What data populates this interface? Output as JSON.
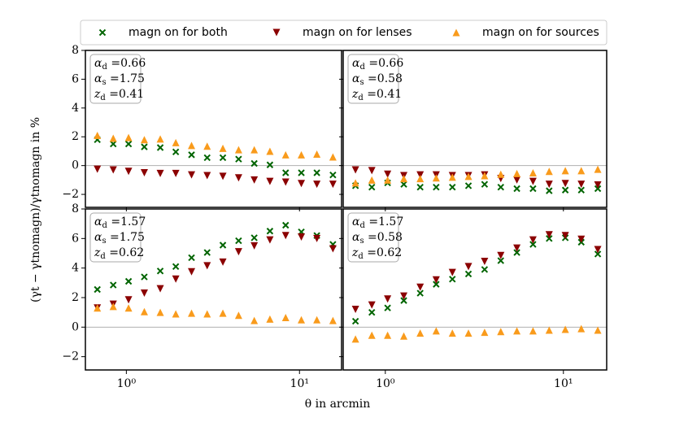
{
  "chart_data": {
    "type": "scatter",
    "xlabel": "θ in arcmin",
    "ylabel": "(γt − γtnomagn)/γtnomagn in %",
    "log_x": true,
    "hline": 0,
    "legend": "top",
    "x": [
      0.68,
      0.84,
      1.03,
      1.27,
      1.57,
      1.93,
      2.38,
      2.93,
      3.61,
      4.45,
      5.48,
      6.75,
      8.32,
      10.25,
      12.6,
      15.6
    ],
    "xlim": [
      0.58,
      17.5
    ],
    "xticks": [
      {
        "value": 1,
        "label": "10⁰"
      },
      {
        "value": 10,
        "label": "10¹"
      }
    ],
    "ylim": [
      -2.9,
      8
    ],
    "yticks": [
      {
        "value": -2,
        "label": "−2"
      },
      0,
      2,
      4,
      6,
      8
    ],
    "series": [
      {
        "name": "magn on for both",
        "color": "#006400",
        "marker": "x"
      },
      {
        "name": "magn on for lenses",
        "color": "#8b0000",
        "marker": "v"
      },
      {
        "name": "magn on for sources",
        "color": "#f99b1c",
        "marker": "^"
      }
    ],
    "panels": [
      {
        "params": [
          {
            "symbol": "α",
            "sub": "d",
            "value": 0.66
          },
          {
            "symbol": "α",
            "sub": "s",
            "value": 1.75
          },
          {
            "symbol": "z",
            "sub": "d",
            "value": 0.41
          }
        ],
        "values": [
          [
            1.8,
            1.5,
            1.5,
            1.3,
            1.25,
            0.95,
            0.75,
            0.55,
            0.55,
            0.45,
            0.15,
            0.05,
            -0.5,
            -0.5,
            -0.5,
            -0.65
          ],
          [
            -0.25,
            -0.3,
            -0.4,
            -0.5,
            -0.55,
            -0.55,
            -0.65,
            -0.7,
            -0.75,
            -0.85,
            -1.0,
            -1.1,
            -1.15,
            -1.25,
            -1.3,
            -1.3
          ],
          [
            2.1,
            1.9,
            1.95,
            1.8,
            1.85,
            1.6,
            1.4,
            1.35,
            1.2,
            1.1,
            1.1,
            1.0,
            0.75,
            0.75,
            0.8,
            0.6
          ]
        ]
      },
      {
        "params": [
          {
            "symbol": "α",
            "sub": "d",
            "value": 0.66
          },
          {
            "symbol": "α",
            "sub": "s",
            "value": 0.58
          },
          {
            "symbol": "z",
            "sub": "d",
            "value": 0.41
          }
        ],
        "values": [
          [
            -1.4,
            -1.5,
            -1.2,
            -1.3,
            -1.5,
            -1.5,
            -1.5,
            -1.4,
            -1.3,
            -1.5,
            -1.6,
            -1.6,
            -1.75,
            -1.7,
            -1.7,
            -1.6
          ],
          [
            -0.3,
            -0.35,
            -0.6,
            -0.7,
            -0.65,
            -0.65,
            -0.7,
            -0.7,
            -0.65,
            -0.9,
            -1.0,
            -1.1,
            -1.3,
            -1.25,
            -1.3,
            -1.35
          ],
          [
            -1.2,
            -1.0,
            -1.0,
            -0.9,
            -0.9,
            -0.85,
            -0.8,
            -0.75,
            -0.7,
            -0.6,
            -0.55,
            -0.5,
            -0.4,
            -0.35,
            -0.35,
            -0.25
          ]
        ]
      },
      {
        "params": [
          {
            "symbol": "α",
            "sub": "d",
            "value": 1.57
          },
          {
            "symbol": "α",
            "sub": "s",
            "value": 1.75
          },
          {
            "symbol": "z",
            "sub": "d",
            "value": 0.62
          }
        ],
        "values": [
          [
            2.55,
            2.85,
            3.1,
            3.4,
            3.8,
            4.1,
            4.7,
            5.05,
            5.55,
            5.85,
            6.05,
            6.5,
            6.9,
            6.45,
            6.2,
            5.6
          ],
          [
            1.3,
            1.55,
            1.85,
            2.3,
            2.6,
            3.25,
            3.75,
            4.15,
            4.4,
            5.1,
            5.5,
            5.9,
            6.2,
            6.1,
            6.0,
            5.3
          ],
          [
            1.3,
            1.4,
            1.3,
            1.05,
            1.0,
            0.9,
            0.95,
            0.9,
            0.95,
            0.8,
            0.45,
            0.55,
            0.65,
            0.5,
            0.5,
            0.45
          ]
        ]
      },
      {
        "params": [
          {
            "symbol": "α",
            "sub": "d",
            "value": 1.57
          },
          {
            "symbol": "α",
            "sub": "s",
            "value": 0.58
          },
          {
            "symbol": "z",
            "sub": "d",
            "value": 0.62
          }
        ],
        "values": [
          [
            0.4,
            1.0,
            1.3,
            1.8,
            2.3,
            2.9,
            3.25,
            3.6,
            3.9,
            4.5,
            5.05,
            5.6,
            6.0,
            6.05,
            5.75,
            4.95
          ],
          [
            1.2,
            1.5,
            1.9,
            2.1,
            2.7,
            3.2,
            3.7,
            4.1,
            4.45,
            4.85,
            5.35,
            5.9,
            6.25,
            6.2,
            5.95,
            5.25
          ],
          [
            -0.8,
            -0.55,
            -0.55,
            -0.6,
            -0.4,
            -0.25,
            -0.4,
            -0.4,
            -0.35,
            -0.3,
            -0.25,
            -0.25,
            -0.2,
            -0.15,
            -0.1,
            -0.2
          ]
        ]
      }
    ]
  }
}
